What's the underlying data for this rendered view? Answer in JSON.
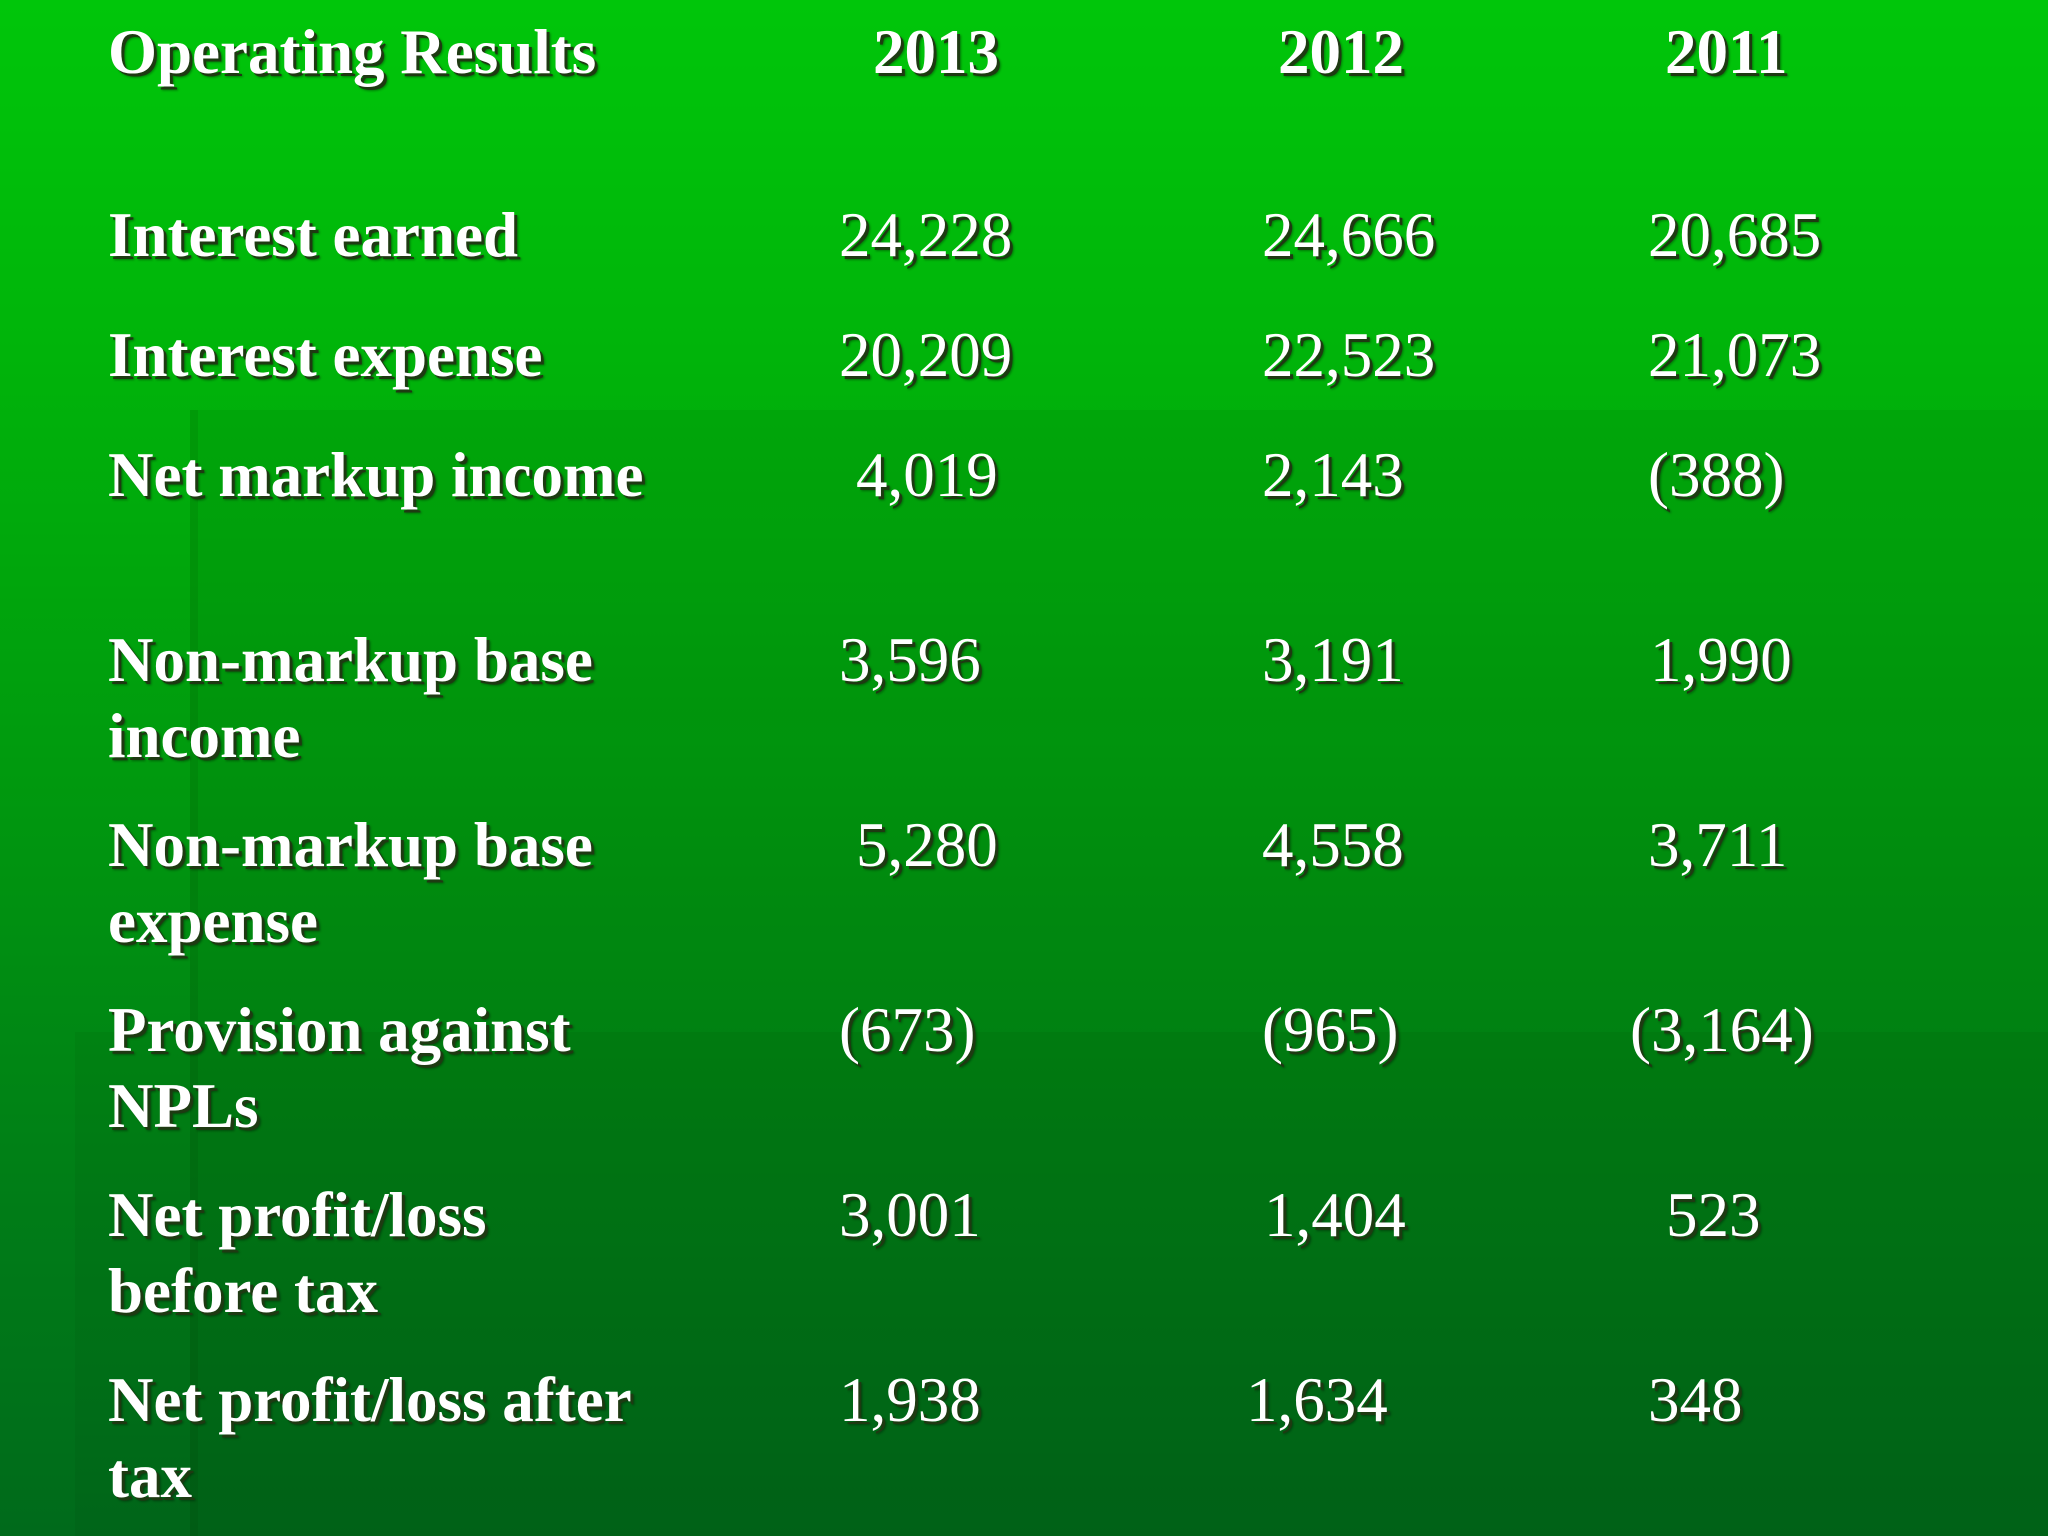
{
  "header": {
    "title": "Operating Results",
    "years": [
      "2013",
      "2012",
      "2011"
    ]
  },
  "rows": [
    {
      "label_lines": [
        "Interest earned"
      ],
      "values": [
        "24,228",
        "24,666",
        "20,685"
      ]
    },
    {
      "label_lines": [
        "Interest expense"
      ],
      "values": [
        "20,209",
        "22,523",
        "21,073"
      ]
    },
    {
      "label_lines": [
        "Net markup income"
      ],
      "values": [
        "4,019",
        "2,143",
        "(388)"
      ]
    },
    {
      "label_lines": [
        "Non-markup base",
        "income"
      ],
      "values": [
        "3,596",
        "3,191",
        "1,990"
      ]
    },
    {
      "label_lines": [
        "Non-markup base",
        "expense"
      ],
      "values": [
        "5,280",
        "4,558",
        "3,711"
      ]
    },
    {
      "label_lines": [
        "Provision against",
        "NPLs"
      ],
      "values": [
        "(673)",
        "(965)",
        "(3,164)"
      ]
    },
    {
      "label_lines": [
        "Net profit/loss",
        "before tax"
      ],
      "values": [
        "3,001",
        "1,404",
        "523"
      ]
    },
    {
      "label_lines": [
        "Net profit/loss after",
        "tax"
      ],
      "values": [
        "1,938",
        "1,634",
        "348"
      ]
    }
  ]
}
